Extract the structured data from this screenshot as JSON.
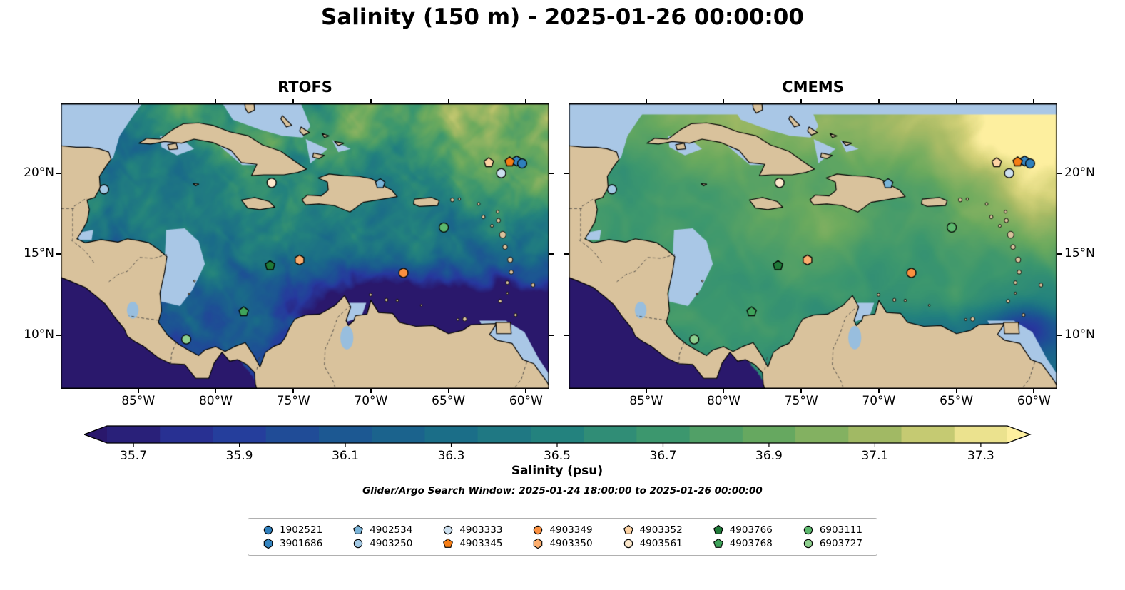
{
  "title": "Salinity (150 m) - 2025-01-26 00:00:00",
  "subtitle_search_window": "Glider/Argo Search Window: 2025-01-24 18:00:00 to 2025-01-26 00:00:00",
  "panels": [
    {
      "title": "RTOFS"
    },
    {
      "title": "CMEMS"
    }
  ],
  "axes": {
    "lon_tick_labels": [
      "85°W",
      "80°W",
      "75°W",
      "70°W",
      "65°W",
      "60°W"
    ],
    "lon_tick_values": [
      -85,
      -80,
      -75,
      -70,
      -65,
      -60
    ],
    "lat_tick_labels": [
      "20°N",
      "15°N",
      "10°N"
    ],
    "lat_tick_values": [
      20,
      15,
      10
    ],
    "extent": {
      "lon_min": -90,
      "lon_max": -58.5,
      "lat_min": 6.7,
      "lat_max": 24.3
    }
  },
  "colorbar": {
    "label": "Salinity (psu)",
    "tick_labels": [
      "35.7",
      "35.9",
      "36.1",
      "36.3",
      "36.5",
      "36.7",
      "36.9",
      "37.1",
      "37.3"
    ],
    "tick_values": [
      35.7,
      35.9,
      36.1,
      36.3,
      36.5,
      36.7,
      36.9,
      37.1,
      37.3
    ],
    "vmin": 35.65,
    "vmax": 37.35,
    "segment_step": 0.1,
    "extend": "both",
    "colormap_name": "haline",
    "colormap_stops": [
      [
        0,
        "#2a186c"
      ],
      [
        0.12,
        "#27389e"
      ],
      [
        0.25,
        "#1c5593"
      ],
      [
        0.37,
        "#1a6b89"
      ],
      [
        0.5,
        "#23827e"
      ],
      [
        0.62,
        "#3c976e"
      ],
      [
        0.75,
        "#6baa5e"
      ],
      [
        0.87,
        "#a9bb65"
      ],
      [
        0.94,
        "#d6d37a"
      ],
      [
        1,
        "#fdef9f"
      ]
    ]
  },
  "colors": {
    "land": "#d9c29c",
    "shallow_water": "#a9c7e6",
    "river": "#98bede",
    "coastline": "#000000",
    "background": "#ffffff"
  },
  "legend": {
    "order": [
      "1902521",
      "4902534",
      "4903333",
      "4903349",
      "4903352",
      "4903766",
      "6903111",
      "3901686",
      "4903250",
      "4903345",
      "4903350",
      "4903561",
      "4903768",
      "6903727"
    ]
  },
  "chart_data": {
    "type": "heatmap",
    "title": "Salinity (150 m) - 2025-01-26 00:00:00",
    "variable": "Salinity",
    "units": "psu",
    "depth_m": 150,
    "valid_time": "2025-01-26 00:00:00",
    "region": "Caribbean Sea and western tropical Atlantic",
    "color_range_psu": [
      35.65,
      37.35
    ],
    "panels": [
      {
        "title": "RTOFS",
        "description": "High mesoscale detail with many eddy filaments; fresh water (35.6-36.0, dark navy) across the southern/eastern Caribbean and Pacific edge; 36.0-36.4 teal over the central basin; saltier 36.6-37.1 green-yellow north of ~18N and in the NE Atlantic sector."
      },
      {
        "title": "CMEMS",
        "description": "Smoother field, mostly 36.6-37.1 green across the basin; freshest (35.8-36.3) near Trinidad/Orinoco outflow and the Pacific edge; saltiest (37.2-37.4, pale yellow) in the northeastern Atlantic sector; pale shallow-water band along the very top."
      }
    ],
    "floats": [
      {
        "id": "3901686",
        "marker": "hexagon",
        "color": "#3585c0",
        "lon": -60.6,
        "lat": 20.75
      },
      {
        "id": "4903345",
        "marker": "pentagon",
        "color": "#f57d15",
        "lon": -61.05,
        "lat": 20.7
      },
      {
        "id": "4903352",
        "marker": "pentagon",
        "color": "#fdd3a4",
        "lon": -62.4,
        "lat": 20.65
      },
      {
        "id": "4903333",
        "marker": "circle",
        "color": "#cde0ef",
        "lon": -61.6,
        "lat": 20.0
      },
      {
        "id": "4902534",
        "marker": "pentagon",
        "color": "#7ab4d8",
        "lon": -69.4,
        "lat": 19.35
      },
      {
        "id": "4903250",
        "marker": "circle",
        "color": "#a3c9e4",
        "lon": -87.2,
        "lat": 19.0
      },
      {
        "id": "4903561",
        "marker": "circle",
        "color": "#fde9cd",
        "lon": -76.4,
        "lat": 19.4
      },
      {
        "id": "6903111",
        "marker": "circle",
        "color": "#5cb86d",
        "lon": -65.3,
        "lat": 16.65
      },
      {
        "id": "4903350",
        "marker": "hexagon",
        "color": "#fcae6e",
        "lon": -74.6,
        "lat": 14.65
      },
      {
        "id": "4903766",
        "marker": "pentagon",
        "color": "#1f7a38",
        "lon": -76.5,
        "lat": 14.3
      },
      {
        "id": "4903349",
        "marker": "circle",
        "color": "#fb9040",
        "lon": -67.9,
        "lat": 13.85
      },
      {
        "id": "4903768",
        "marker": "pentagon",
        "color": "#3fa35a",
        "lon": -78.2,
        "lat": 11.45
      },
      {
        "id": "6903727",
        "marker": "circle",
        "color": "#8ecf8e",
        "lon": -81.9,
        "lat": 9.75
      },
      {
        "id": "1902521",
        "marker": "circle",
        "color": "#2f7fbc",
        "lon": -60.25,
        "lat": 20.6
      }
    ]
  }
}
